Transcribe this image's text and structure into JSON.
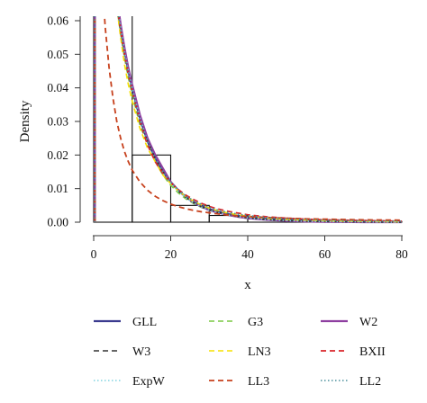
{
  "chart_data": {
    "type": "histogram+density-lines",
    "xlabel": "x",
    "ylabel": "Density",
    "xlim": [
      0,
      80
    ],
    "ylim": [
      0,
      0.06
    ],
    "x_ticks": [
      0,
      20,
      40,
      60,
      80
    ],
    "y_ticks": [
      0.0,
      0.01,
      0.02,
      0.03,
      0.04,
      0.05,
      0.06
    ],
    "x_tick_labels": [
      "0",
      "20",
      "40",
      "60",
      "80"
    ],
    "y_tick_labels": [
      "0.00",
      "0.01",
      "0.02",
      "0.03",
      "0.04",
      "0.05",
      "0.06"
    ],
    "histogram": {
      "bins": [
        {
          "x0": 0,
          "x1": 10,
          "density": 0.066
        },
        {
          "x0": 10,
          "x1": 20,
          "density": 0.02
        },
        {
          "x0": 20,
          "x1": 30,
          "density": 0.005
        },
        {
          "x0": 30,
          "x1": 40,
          "density": 0.002
        },
        {
          "x0": 40,
          "x1": 50,
          "density": 0.001
        },
        {
          "x0": 50,
          "x1": 60,
          "density": 0.0005
        },
        {
          "x0": 60,
          "x1": 70,
          "density": 0.0004
        },
        {
          "x0": 70,
          "x1": 80,
          "density": 0.0002
        }
      ]
    },
    "legend_position": "bottom",
    "legend_columns": 3,
    "series": [
      {
        "name": "GLL",
        "color": "#3b3b8f",
        "dash": "solid",
        "width": 2.2,
        "x": [
          0.3,
          0.7,
          1.2,
          2,
          3,
          4,
          5,
          6,
          7,
          8,
          9,
          10,
          12,
          14,
          16,
          18,
          20,
          22,
          24,
          26,
          28,
          30,
          32,
          35,
          38,
          40,
          45,
          50,
          55,
          60,
          70,
          80
        ],
        "y": [
          0.09,
          0.09,
          0.09,
          0.09,
          0.088,
          0.082,
          0.074,
          0.066,
          0.058,
          0.051,
          0.045,
          0.04,
          0.031,
          0.024,
          0.019,
          0.015,
          0.012,
          0.0094,
          0.0075,
          0.006,
          0.0048,
          0.0039,
          0.0032,
          0.0024,
          0.0018,
          0.0015,
          0.001,
          0.0007,
          0.0005,
          0.0004,
          0.0002,
          0.0001
        ]
      },
      {
        "name": "G3",
        "color": "#7ac943",
        "dash": "dashed",
        "width": 1.6,
        "x": [
          0.3,
          0.7,
          1.2,
          2,
          3,
          4,
          5,
          6,
          7,
          8,
          9,
          10,
          12,
          14,
          16,
          18,
          20,
          22,
          24,
          26,
          28,
          30,
          32,
          35,
          38,
          40,
          45,
          50,
          55,
          60,
          70,
          80
        ],
        "y": [
          0.09,
          0.09,
          0.09,
          0.09,
          0.088,
          0.08,
          0.072,
          0.064,
          0.056,
          0.049,
          0.043,
          0.038,
          0.029,
          0.023,
          0.018,
          0.014,
          0.011,
          0.0087,
          0.0069,
          0.0055,
          0.0044,
          0.0035,
          0.0028,
          0.0021,
          0.0016,
          0.0013,
          0.0008,
          0.0005,
          0.0003,
          0.0002,
          0.0001,
          0.0
        ]
      },
      {
        "name": "W2",
        "color": "#8e3fa0",
        "dash": "solid",
        "width": 2.2,
        "x": [
          0.3,
          0.7,
          1.2,
          2,
          3,
          4,
          5,
          6,
          7,
          8,
          9,
          10,
          12,
          14,
          16,
          18,
          20,
          22,
          24,
          26,
          28,
          30,
          32,
          35,
          38,
          40,
          45,
          50,
          55,
          60,
          70,
          80
        ],
        "y": [
          0.09,
          0.09,
          0.09,
          0.09,
          0.09,
          0.085,
          0.076,
          0.067,
          0.059,
          0.052,
          0.046,
          0.041,
          0.032,
          0.025,
          0.02,
          0.016,
          0.012,
          0.0095,
          0.0074,
          0.0058,
          0.0046,
          0.0036,
          0.0029,
          0.0021,
          0.0015,
          0.0012,
          0.0007,
          0.0004,
          0.0002,
          0.0001,
          0.0,
          0.0
        ]
      },
      {
        "name": "W3",
        "color": "#333333",
        "dash": "dashed",
        "width": 1.6,
        "x": [
          0.3,
          0.7,
          1.2,
          2,
          3,
          4,
          5,
          6,
          7,
          8,
          9,
          10,
          12,
          14,
          16,
          18,
          20,
          22,
          24,
          26,
          28,
          30,
          32,
          35,
          38,
          40,
          45,
          50,
          55,
          60,
          70,
          80
        ],
        "y": [
          0.09,
          0.09,
          0.09,
          0.09,
          0.087,
          0.081,
          0.073,
          0.065,
          0.057,
          0.05,
          0.044,
          0.039,
          0.03,
          0.024,
          0.019,
          0.015,
          0.0118,
          0.0093,
          0.0073,
          0.0058,
          0.0046,
          0.0037,
          0.003,
          0.0022,
          0.0016,
          0.0013,
          0.0008,
          0.0005,
          0.0003,
          0.0002,
          0.0001,
          0.0
        ]
      },
      {
        "name": "LN3",
        "color": "#f5e000",
        "dash": "dashed",
        "width": 1.6,
        "x": [
          0.3,
          0.7,
          1.2,
          2,
          3,
          4,
          5,
          6,
          7,
          8,
          9,
          10,
          12,
          14,
          16,
          18,
          20,
          22,
          24,
          26,
          28,
          30,
          32,
          35,
          38,
          40,
          45,
          50,
          55,
          60,
          70,
          80
        ],
        "y": [
          0.09,
          0.09,
          0.09,
          0.09,
          0.09,
          0.086,
          0.075,
          0.064,
          0.055,
          0.047,
          0.041,
          0.036,
          0.028,
          0.022,
          0.018,
          0.014,
          0.0115,
          0.0093,
          0.0076,
          0.0062,
          0.0051,
          0.0042,
          0.0035,
          0.0027,
          0.0021,
          0.0018,
          0.0012,
          0.0008,
          0.0006,
          0.0004,
          0.0002,
          0.0001
        ]
      },
      {
        "name": "BXII",
        "color": "#d9262b",
        "dash": "dashed",
        "width": 1.8,
        "x": [
          0.3,
          0.7,
          1.2,
          2,
          3,
          4,
          5,
          6,
          7,
          8,
          9,
          10,
          12,
          14,
          16,
          18,
          20,
          22,
          24,
          26,
          28,
          30,
          32,
          35,
          38,
          40,
          45,
          50,
          55,
          60,
          70,
          80
        ],
        "y": [
          0.09,
          0.09,
          0.09,
          0.09,
          0.088,
          0.081,
          0.073,
          0.065,
          0.057,
          0.05,
          0.044,
          0.039,
          0.03,
          0.023,
          0.018,
          0.0145,
          0.0118,
          0.0097,
          0.008,
          0.0067,
          0.0056,
          0.0047,
          0.004,
          0.0032,
          0.0026,
          0.0022,
          0.0016,
          0.0012,
          0.0009,
          0.0007,
          0.0005,
          0.0003
        ]
      },
      {
        "name": "ExpW",
        "color": "#7fd3e0",
        "dash": "dotted",
        "width": 1.6,
        "x": [
          0.3,
          0.7,
          1.2,
          2,
          3,
          4,
          5,
          6,
          7,
          8,
          9,
          10,
          12,
          14,
          16,
          18,
          20,
          22,
          24,
          26,
          28,
          30,
          32,
          35,
          38,
          40,
          45,
          50,
          55,
          60,
          70,
          80
        ],
        "y": [
          0.09,
          0.09,
          0.09,
          0.09,
          0.088,
          0.082,
          0.074,
          0.066,
          0.058,
          0.051,
          0.045,
          0.04,
          0.031,
          0.024,
          0.019,
          0.015,
          0.0117,
          0.0092,
          0.0072,
          0.0057,
          0.0045,
          0.0036,
          0.0029,
          0.0021,
          0.0016,
          0.0013,
          0.0008,
          0.0005,
          0.0003,
          0.0002,
          0.0001,
          0.0
        ]
      },
      {
        "name": "LL3",
        "color": "#c7411d",
        "dash": "dashed",
        "width": 1.8,
        "x": [
          0.3,
          0.7,
          1.2,
          2,
          3,
          4,
          5,
          6,
          7,
          8,
          9,
          10,
          12,
          14,
          16,
          18,
          20,
          22,
          24,
          26,
          28,
          30,
          32,
          35,
          38,
          40,
          45,
          50,
          55,
          60,
          70,
          80
        ],
        "y": [
          0.09,
          0.09,
          0.09,
          0.075,
          0.058,
          0.046,
          0.037,
          0.03,
          0.025,
          0.021,
          0.018,
          0.0155,
          0.012,
          0.0095,
          0.0077,
          0.0064,
          0.0054,
          0.0046,
          0.004,
          0.0035,
          0.0031,
          0.0028,
          0.0025,
          0.0021,
          0.0018,
          0.0017,
          0.0014,
          0.0012,
          0.001,
          0.0009,
          0.0007,
          0.0006
        ]
      },
      {
        "name": "LL2",
        "color": "#4a8f9b",
        "dash": "dotted",
        "width": 1.6,
        "x": [
          0.3,
          0.7,
          1.2,
          2,
          3,
          4,
          5,
          6,
          7,
          8,
          9,
          10,
          12,
          14,
          16,
          18,
          20,
          22,
          24,
          26,
          28,
          30,
          32,
          35,
          38,
          40,
          45,
          50,
          55,
          60,
          70,
          80
        ],
        "y": [
          0.09,
          0.09,
          0.09,
          0.09,
          0.087,
          0.081,
          0.073,
          0.065,
          0.057,
          0.05,
          0.044,
          0.039,
          0.03,
          0.024,
          0.019,
          0.015,
          0.012,
          0.0096,
          0.0078,
          0.0064,
          0.0053,
          0.0044,
          0.0037,
          0.0029,
          0.0023,
          0.002,
          0.0014,
          0.001,
          0.0008,
          0.0006,
          0.0004,
          0.0003
        ]
      }
    ]
  }
}
